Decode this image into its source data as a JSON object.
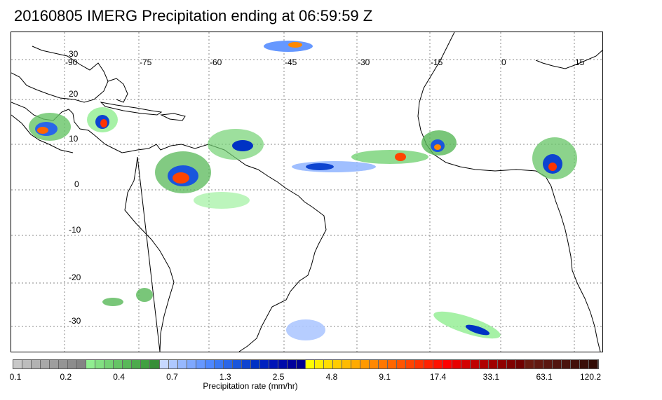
{
  "title": "20160805 IMERG Precipitation ending at 06:59:59 Z",
  "map": {
    "longitude_labels": [
      "-90",
      "-75",
      "-60",
      "-45",
      "-30",
      "-15",
      "0",
      "15"
    ],
    "latitude_labels": [
      "30",
      "20",
      "10",
      "0",
      "-10",
      "-20",
      "-30"
    ],
    "gridline_color": "#888888",
    "land_outline_color": "#000000"
  },
  "colorbar": {
    "title": "Precipitation rate (mm/hr)",
    "tick_labels": [
      "0.1",
      "0.2",
      "0.4",
      "0.7",
      "1.3",
      "2.5",
      "4.8",
      "9.1",
      "17.4",
      "33.1",
      "63.1",
      "120.2"
    ],
    "colors": [
      "#c8c8c8",
      "#bdbdbd",
      "#b2b2b2",
      "#a8a8a8",
      "#9e9e9e",
      "#949494",
      "#8c8c8c",
      "#848484",
      "#90ee90",
      "#82e082",
      "#74d274",
      "#66c466",
      "#58b858",
      "#4caa4c",
      "#41a041",
      "#378f37",
      "#c6d8ff",
      "#aec8ff",
      "#96b8ff",
      "#7ea8ff",
      "#6698ff",
      "#4e88ff",
      "#3a78f4",
      "#2a66e8",
      "#1a56dc",
      "#0e44d0",
      "#0032c4",
      "#0022c0",
      "#0014b8",
      "#000aaa",
      "#00009c",
      "#000090",
      "#ffff00",
      "#ffee00",
      "#ffdd00",
      "#ffcc00",
      "#ffbb00",
      "#ffaa00",
      "#ff9900",
      "#ff8800",
      "#ff7700",
      "#ff6600",
      "#ff5500",
      "#ff4400",
      "#ff3300",
      "#ff2200",
      "#ff1100",
      "#ff0000",
      "#e80000",
      "#d40000",
      "#c00000",
      "#b00000",
      "#a00000",
      "#900000",
      "#800000",
      "#700000",
      "#6a1a10",
      "#621810",
      "#5a1610",
      "#52140e",
      "#4a120c",
      "#42100a",
      "#3a0e08",
      "#320c06"
    ]
  }
}
